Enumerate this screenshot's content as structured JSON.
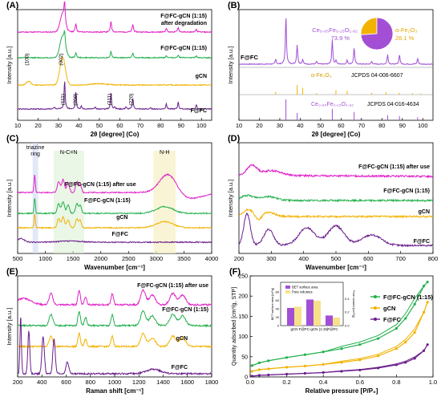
{
  "chart_data": [
    {
      "panel": "(A)",
      "type": "line",
      "xlabel": "2θ [degree] (Co)",
      "ylabel": "Intensity [a.u.]",
      "xlim": [
        10,
        105
      ],
      "xticks": [
        "10",
        "20",
        "30",
        "40",
        "50",
        "60",
        "70",
        "80",
        "90",
        "100"
      ],
      "series": [
        {
          "name": "F@FC-gCN (1:15) after degradation",
          "color": "#e020c8"
        },
        {
          "name": "F@FC-gCN (1:15)",
          "color": "#22b04c"
        },
        {
          "name": "gCN",
          "color": "#f2b200"
        },
        {
          "name": "F@FC",
          "color": "#6a1e8c"
        }
      ],
      "annotations": [
        "(100)",
        "(002)",
        "(111)",
        "(200)",
        "(311)",
        "(220)"
      ]
    },
    {
      "panel": "(B)",
      "type": "line",
      "xlabel": "2θ [degree] (Co)",
      "ylabel": "Intensity [a.u.]",
      "xlim": [
        10,
        105
      ],
      "xticks": [
        "10",
        "20",
        "30",
        "40",
        "50",
        "60",
        "70",
        "80",
        "90",
        "100"
      ],
      "sample_label": "F@FC",
      "reference_patterns": [
        {
          "label": "α-Fe₂O₃",
          "card": "JCPDS 04-006-6607",
          "color": "#f2b200"
        },
        {
          "label": "Ce₀.₈₅Fe₀.₁₅O₁.₉₂",
          "card": "JCPDS 04-016-4634",
          "color": "#a24fd6"
        }
      ],
      "pie": [
        {
          "label": "Ce₀.₈₅Fe₀.₁₅O₁.₉₂",
          "value": 73.9,
          "text": "73.9 %",
          "color": "#a24fd6"
        },
        {
          "label": "α-Fe₂O₃",
          "value": 26.1,
          "text": "26.1 %",
          "color": "#f2b200"
        }
      ]
    },
    {
      "panel": "(C)",
      "type": "line",
      "xlabel": "Wavenumber [cm⁻¹]",
      "ylabel": "Intensity [a.u.]",
      "xlim": [
        500,
        4000
      ],
      "xticks": [
        "500",
        "1000",
        "1500",
        "2000",
        "2500",
        "3000",
        "3500",
        "4000"
      ],
      "series": [
        {
          "name": "F@FC-gCN (1:15) after use",
          "color": "#e020c8"
        },
        {
          "name": "F@FC-gCN (1:15)",
          "color": "#22b04c"
        },
        {
          "name": "gCN",
          "color": "#f2b200"
        },
        {
          "name": "F@FC",
          "color": "#6a1e8c"
        }
      ],
      "bands": [
        "triazine ring",
        "N-C=N",
        "N-H"
      ]
    },
    {
      "panel": "(D)",
      "type": "line",
      "xlabel": "Wavenumber [cm⁻¹]",
      "ylabel": "Intensity [a.u.]",
      "xlim": [
        200,
        800
      ],
      "xticks": [
        "200",
        "300",
        "400",
        "500",
        "600",
        "700",
        "800"
      ],
      "series": [
        {
          "name": "F@FC-gCN (1:15) after use",
          "color": "#e020c8"
        },
        {
          "name": "F@FC-gCN (1:15)",
          "color": "#22b04c"
        },
        {
          "name": "gCN",
          "color": "#f2b200"
        },
        {
          "name": "F@FC",
          "color": "#6a1e8c"
        }
      ]
    },
    {
      "panel": "(E)",
      "type": "line",
      "xlabel": "Raman shift [cm⁻¹]",
      "ylabel": "Intensity [a.u.]",
      "xlim": [
        200,
        1800
      ],
      "xticks": [
        "200",
        "400",
        "600",
        "800",
        "1000",
        "1200",
        "1400",
        "1600",
        "1800"
      ],
      "series": [
        {
          "name": "F@FC-gCN (1:15) after use",
          "color": "#e020c8"
        },
        {
          "name": "F@FC-gCN (1:15)",
          "color": "#22b04c"
        },
        {
          "name": "gCN",
          "color": "#f2b200"
        },
        {
          "name": "F@FC",
          "color": "#6a1e8c"
        }
      ]
    },
    {
      "panel": "(F)",
      "type": "line",
      "xlabel": "Relative pressure [P/P₀]",
      "ylabel": "Quantity adsorbed [cm³/g, STP]",
      "xlim": [
        0,
        1.0
      ],
      "ylim": [
        0,
        250
      ],
      "xticks": [
        "0.0",
        "0.2",
        "0.4",
        "0.6",
        "0.8",
        "1.0"
      ],
      "yticks": [
        "0",
        "50",
        "100",
        "150",
        "200",
        "250"
      ],
      "legend": "right",
      "series": [
        {
          "name": "F@FC-gCN (1:15)",
          "color": "#22b04c",
          "x": [
            0.01,
            0.05,
            0.1,
            0.2,
            0.3,
            0.4,
            0.5,
            0.6,
            0.7,
            0.8,
            0.85,
            0.9,
            0.95,
            0.97
          ],
          "y": [
            28,
            35,
            40,
            48,
            55,
            62,
            70,
            80,
            95,
            120,
            145,
            180,
            225,
            235
          ]
        },
        {
          "name": "gCN",
          "color": "#f2b200",
          "x": [
            0.01,
            0.05,
            0.1,
            0.2,
            0.3,
            0.4,
            0.5,
            0.6,
            0.7,
            0.8,
            0.85,
            0.9,
            0.95,
            0.97
          ],
          "y": [
            14,
            18,
            20,
            24,
            27,
            31,
            36,
            42,
            52,
            70,
            86,
            110,
            160,
            185
          ]
        },
        {
          "name": "F@FC",
          "color": "#6a1e8c",
          "x": [
            0.01,
            0.05,
            0.1,
            0.2,
            0.3,
            0.4,
            0.5,
            0.6,
            0.7,
            0.8,
            0.85,
            0.9,
            0.95,
            0.97
          ],
          "y": [
            2,
            4,
            5,
            7,
            9,
            11,
            14,
            17,
            22,
            30,
            36,
            46,
            65,
            80
          ]
        }
      ],
      "inset": {
        "type": "bar",
        "legend": [
          "BET surface area",
          "Pore volumes"
        ],
        "categories": [
          "gCN",
          "F@FC-gCN (1:15)",
          "F@FC"
        ],
        "left_ylabel": "BET surface area [m²/g]",
        "right_ylabel": "Pore volume [cm³/g]",
        "left_yticks": [
          "0",
          "20",
          "40",
          "60",
          "80"
        ],
        "right_yticks": [
          "0.0",
          "0.2",
          "0.4"
        ],
        "series": [
          {
            "name": "BET surface area",
            "color": "#a24fd6",
            "values": [
              42,
              62,
              24
            ]
          },
          {
            "name": "Pore volumes",
            "color": "#f7e08a",
            "values": [
              0.28,
              0.37,
              0.12
            ]
          }
        ]
      }
    }
  ]
}
